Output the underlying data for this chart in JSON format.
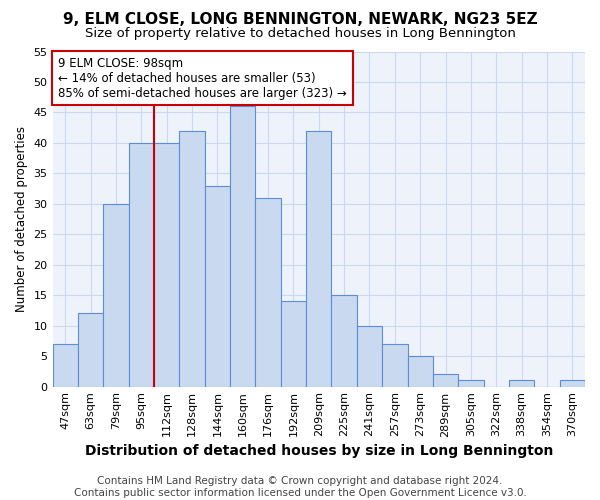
{
  "title": "9, ELM CLOSE, LONG BENNINGTON, NEWARK, NG23 5EZ",
  "subtitle": "Size of property relative to detached houses in Long Bennington",
  "xlabel": "Distribution of detached houses by size in Long Bennington",
  "ylabel": "Number of detached properties",
  "footer_line1": "Contains HM Land Registry data © Crown copyright and database right 2024.",
  "footer_line2": "Contains public sector information licensed under the Open Government Licence v3.0.",
  "categories": [
    "47sqm",
    "63sqm",
    "79sqm",
    "95sqm",
    "112sqm",
    "128sqm",
    "144sqm",
    "160sqm",
    "176sqm",
    "192sqm",
    "209sqm",
    "225sqm",
    "241sqm",
    "257sqm",
    "273sqm",
    "289sqm",
    "305sqm",
    "322sqm",
    "338sqm",
    "354sqm",
    "370sqm"
  ],
  "values": [
    7,
    12,
    30,
    40,
    40,
    42,
    33,
    46,
    31,
    14,
    42,
    15,
    10,
    7,
    5,
    2,
    1,
    0,
    1,
    0,
    1
  ],
  "bar_color": "#c9d9f0",
  "bar_edge_color": "#5b8ed6",
  "grid_color": "#c9d9f0",
  "plot_bg_color": "#edf2fb",
  "fig_bg_color": "#ffffff",
  "vline_x": 3.5,
  "vline_color": "#cc0000",
  "annotation_text": "9 ELM CLOSE: 98sqm\n← 14% of detached houses are smaller (53)\n85% of semi-detached houses are larger (323) →",
  "annotation_box_facecolor": "#ffffff",
  "annotation_box_edgecolor": "#cc0000",
  "ylim": [
    0,
    55
  ],
  "yticks": [
    0,
    5,
    10,
    15,
    20,
    25,
    30,
    35,
    40,
    45,
    50,
    55
  ],
  "title_fontsize": 11,
  "subtitle_fontsize": 9.5,
  "xlabel_fontsize": 10,
  "ylabel_fontsize": 8.5,
  "tick_fontsize": 8,
  "footer_fontsize": 7.5,
  "annotation_fontsize": 8.5
}
